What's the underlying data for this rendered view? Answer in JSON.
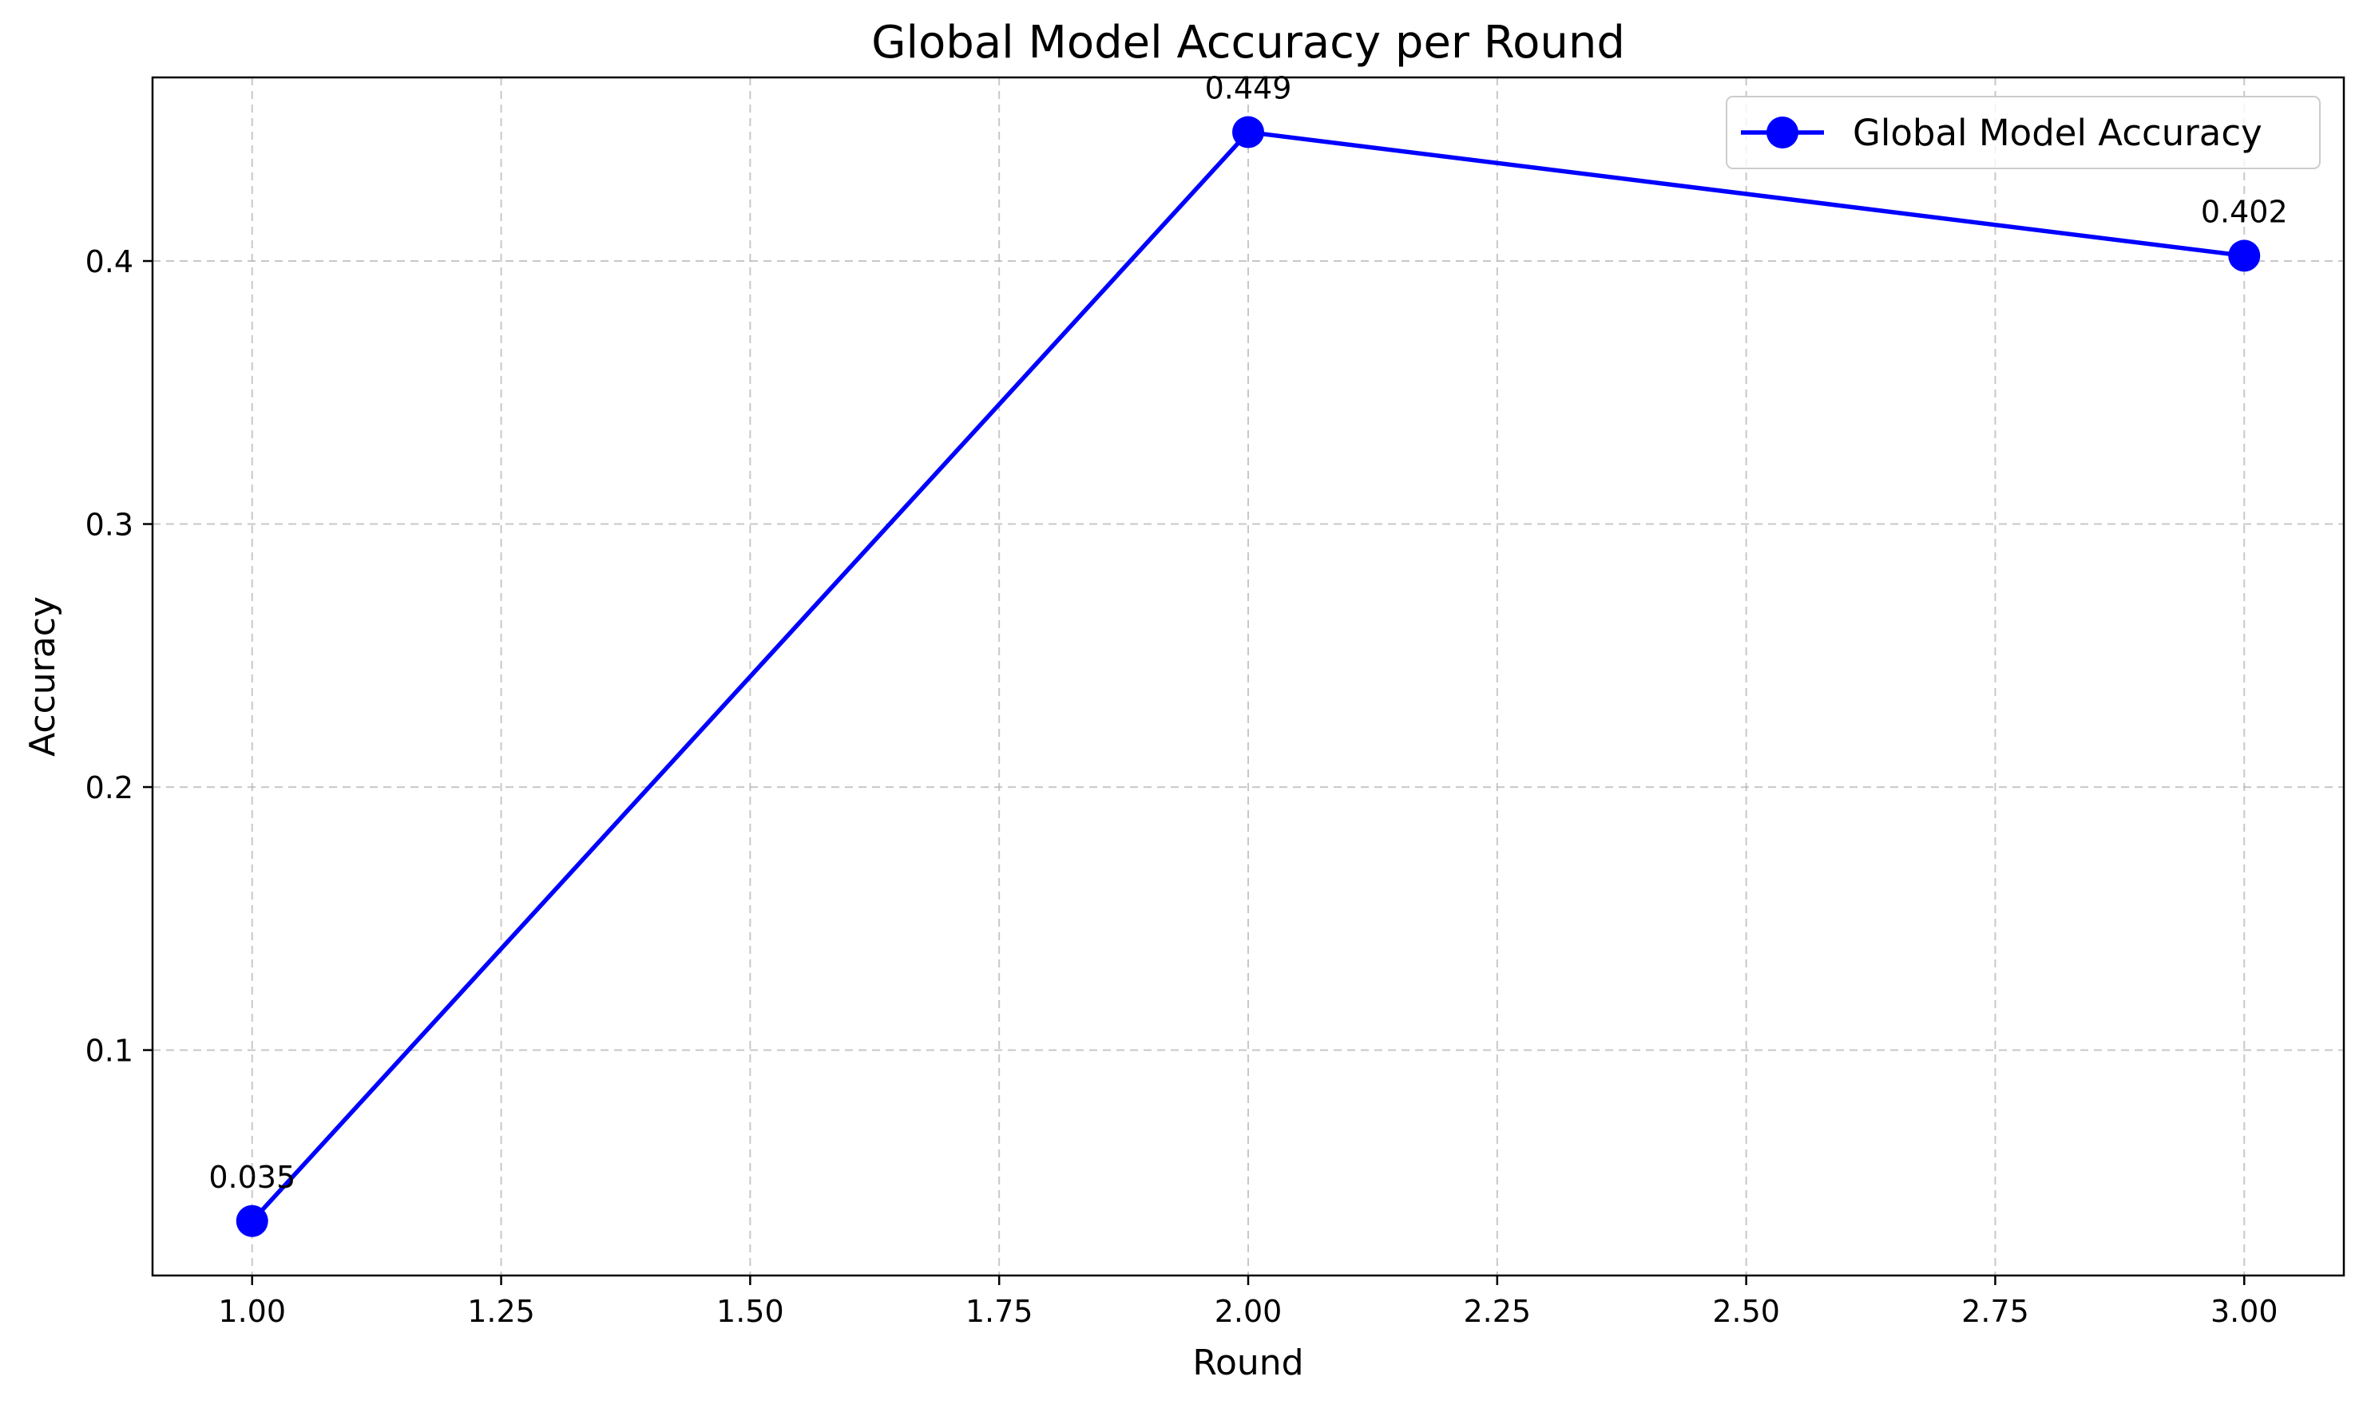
{
  "chart_data": {
    "type": "line",
    "title": "Global Model Accuracy per Round",
    "xlabel": "Round",
    "ylabel": "Accuracy",
    "xlim": [
      0.9,
      3.1
    ],
    "ylim": [
      0.0143,
      0.4698
    ],
    "xticks": [
      1.0,
      1.25,
      1.5,
      1.75,
      2.0,
      2.25,
      2.5,
      2.75,
      3.0
    ],
    "xtick_labels": [
      "1.00",
      "1.25",
      "1.50",
      "1.75",
      "2.00",
      "2.25",
      "2.50",
      "2.75",
      "3.00"
    ],
    "yticks": [
      0.1,
      0.2,
      0.3,
      0.4
    ],
    "ytick_labels": [
      "0.1",
      "0.2",
      "0.3",
      "0.4"
    ],
    "grid": true,
    "legend_position": "top-right",
    "series": [
      {
        "name": "Global Model Accuracy",
        "color": "#0000ff",
        "marker": "circle",
        "x": [
          1,
          2,
          3
        ],
        "y": [
          0.035,
          0.449,
          0.402
        ],
        "point_labels": [
          "0.035",
          "0.449",
          "0.402"
        ]
      }
    ]
  }
}
